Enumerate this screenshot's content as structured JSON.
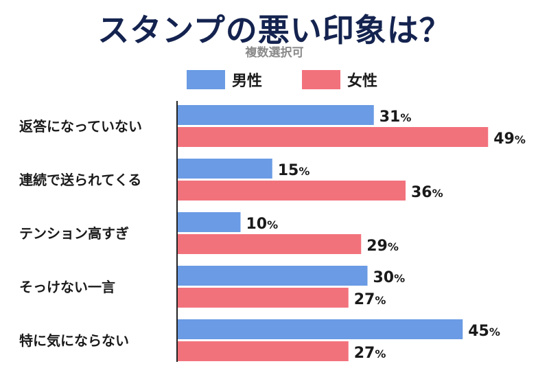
{
  "chart_data": {
    "type": "bar",
    "orientation": "horizontal",
    "title": "スタンプの悪い印象は？",
    "subtitle": "複数選択可",
    "categories": [
      "返答になっていない",
      "連続で送られてくる",
      "テンション高すぎ",
      "そっけない一言",
      "特に気にならない"
    ],
    "series": [
      {
        "name": "男性",
        "color": "#6a9be4",
        "values": [
          31,
          15,
          10,
          30,
          45
        ]
      },
      {
        "name": "女性",
        "color": "#f2727c",
        "values": [
          49,
          36,
          29,
          27,
          27
        ]
      }
    ],
    "value_suffix": "%",
    "xlim": [
      0,
      50
    ],
    "legend_position": "top",
    "grid": false
  }
}
